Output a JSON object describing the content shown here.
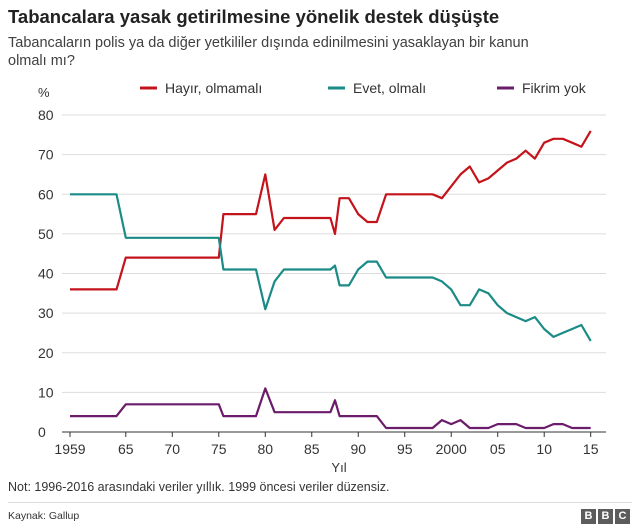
{
  "header": {
    "title": "Tabancalara yasak getirilmesine yönelik destek düşüşte",
    "subtitle": "Tabancaların polis ya da diğer yetkililer dışında edinilmesini yasaklayan bir kanun olmalı mı?"
  },
  "chart_data": {
    "type": "line",
    "ylabel": "%",
    "xlabel": "Yıl",
    "xlim": [
      1959,
      2016
    ],
    "ylim": [
      0,
      80
    ],
    "y_ticks": [
      0,
      10,
      20,
      30,
      40,
      50,
      60,
      70,
      80
    ],
    "x_ticks": [
      {
        "value": 1959,
        "label": "1959"
      },
      {
        "value": 1965,
        "label": "65"
      },
      {
        "value": 1970,
        "label": "70"
      },
      {
        "value": 1975,
        "label": "75"
      },
      {
        "value": 1980,
        "label": "80"
      },
      {
        "value": 1985,
        "label": "85"
      },
      {
        "value": 1990,
        "label": "90"
      },
      {
        "value": 1995,
        "label": "95"
      },
      {
        "value": 2000,
        "label": "2000"
      },
      {
        "value": 2005,
        "label": "05"
      },
      {
        "value": 2010,
        "label": "10"
      },
      {
        "value": 2015,
        "label": "15"
      }
    ],
    "grid": true,
    "legend_position": "top",
    "series": [
      {
        "name": "Hayır, olmamalı",
        "color": "#c4141b",
        "points": [
          [
            1959,
            36
          ],
          [
            1964,
            36
          ],
          [
            1965,
            44
          ],
          [
            1975,
            44
          ],
          [
            1975.5,
            55
          ],
          [
            1979,
            55
          ],
          [
            1980,
            65
          ],
          [
            1981,
            51
          ],
          [
            1982,
            54
          ],
          [
            1986,
            54
          ],
          [
            1987,
            54
          ],
          [
            1987.5,
            50
          ],
          [
            1988,
            59
          ],
          [
            1989,
            59
          ],
          [
            1990,
            55
          ],
          [
            1991,
            53
          ],
          [
            1992,
            53
          ],
          [
            1993,
            60
          ],
          [
            1997,
            60
          ],
          [
            1998,
            60
          ],
          [
            1999,
            59
          ],
          [
            2000,
            62
          ],
          [
            2001,
            65
          ],
          [
            2002,
            67
          ],
          [
            2003,
            63
          ],
          [
            2004,
            64
          ],
          [
            2005,
            66
          ],
          [
            2006,
            68
          ],
          [
            2007,
            69
          ],
          [
            2008,
            71
          ],
          [
            2009,
            69
          ],
          [
            2010,
            73
          ],
          [
            2011,
            74
          ],
          [
            2012,
            74
          ],
          [
            2013,
            73
          ],
          [
            2014,
            72
          ],
          [
            2015,
            76
          ]
        ]
      },
      {
        "name": "Evet, olmalı",
        "color": "#1a8b86",
        "points": [
          [
            1959,
            60
          ],
          [
            1964,
            60
          ],
          [
            1965,
            49
          ],
          [
            1975,
            49
          ],
          [
            1975.5,
            41
          ],
          [
            1979,
            41
          ],
          [
            1980,
            31
          ],
          [
            1981,
            38
          ],
          [
            1982,
            41
          ],
          [
            1986,
            41
          ],
          [
            1987,
            41
          ],
          [
            1987.5,
            42
          ],
          [
            1988,
            37
          ],
          [
            1989,
            37
          ],
          [
            1990,
            41
          ],
          [
            1991,
            43
          ],
          [
            1992,
            43
          ],
          [
            1993,
            39
          ],
          [
            1997,
            39
          ],
          [
            1998,
            39
          ],
          [
            1999,
            38
          ],
          [
            2000,
            36
          ],
          [
            2001,
            32
          ],
          [
            2002,
            32
          ],
          [
            2003,
            36
          ],
          [
            2004,
            35
          ],
          [
            2005,
            32
          ],
          [
            2006,
            30
          ],
          [
            2007,
            29
          ],
          [
            2008,
            28
          ],
          [
            2009,
            29
          ],
          [
            2010,
            26
          ],
          [
            2011,
            24
          ],
          [
            2012,
            25
          ],
          [
            2013,
            26
          ],
          [
            2014,
            27
          ],
          [
            2015,
            23
          ]
        ]
      },
      {
        "name": "Fikrim yok",
        "color": "#6b1c6b",
        "points": [
          [
            1959,
            4
          ],
          [
            1964,
            4
          ],
          [
            1965,
            7
          ],
          [
            1975,
            7
          ],
          [
            1975.5,
            4
          ],
          [
            1979,
            4
          ],
          [
            1980,
            11
          ],
          [
            1981,
            5
          ],
          [
            1982,
            5
          ],
          [
            1986,
            5
          ],
          [
            1987,
            5
          ],
          [
            1987.5,
            8
          ],
          [
            1988,
            4
          ],
          [
            1989,
            4
          ],
          [
            1990,
            4
          ],
          [
            1991,
            4
          ],
          [
            1992,
            4
          ],
          [
            1993,
            1
          ],
          [
            1997,
            1
          ],
          [
            1998,
            1
          ],
          [
            1999,
            3
          ],
          [
            2000,
            2
          ],
          [
            2001,
            3
          ],
          [
            2002,
            1
          ],
          [
            2003,
            1
          ],
          [
            2004,
            1
          ],
          [
            2005,
            2
          ],
          [
            2006,
            2
          ],
          [
            2007,
            2
          ],
          [
            2008,
            1
          ],
          [
            2009,
            1
          ],
          [
            2010,
            1
          ],
          [
            2011,
            2
          ],
          [
            2012,
            2
          ],
          [
            2013,
            1
          ],
          [
            2014,
            1
          ],
          [
            2015,
            1
          ]
        ]
      }
    ]
  },
  "footer": {
    "note": "Not: 1996-2016 arasındaki veriler yıllık. 1999 öncesi veriler düzensiz.",
    "source": "Kaynak: Gallup",
    "logo_letters": [
      "B",
      "B",
      "C"
    ]
  }
}
